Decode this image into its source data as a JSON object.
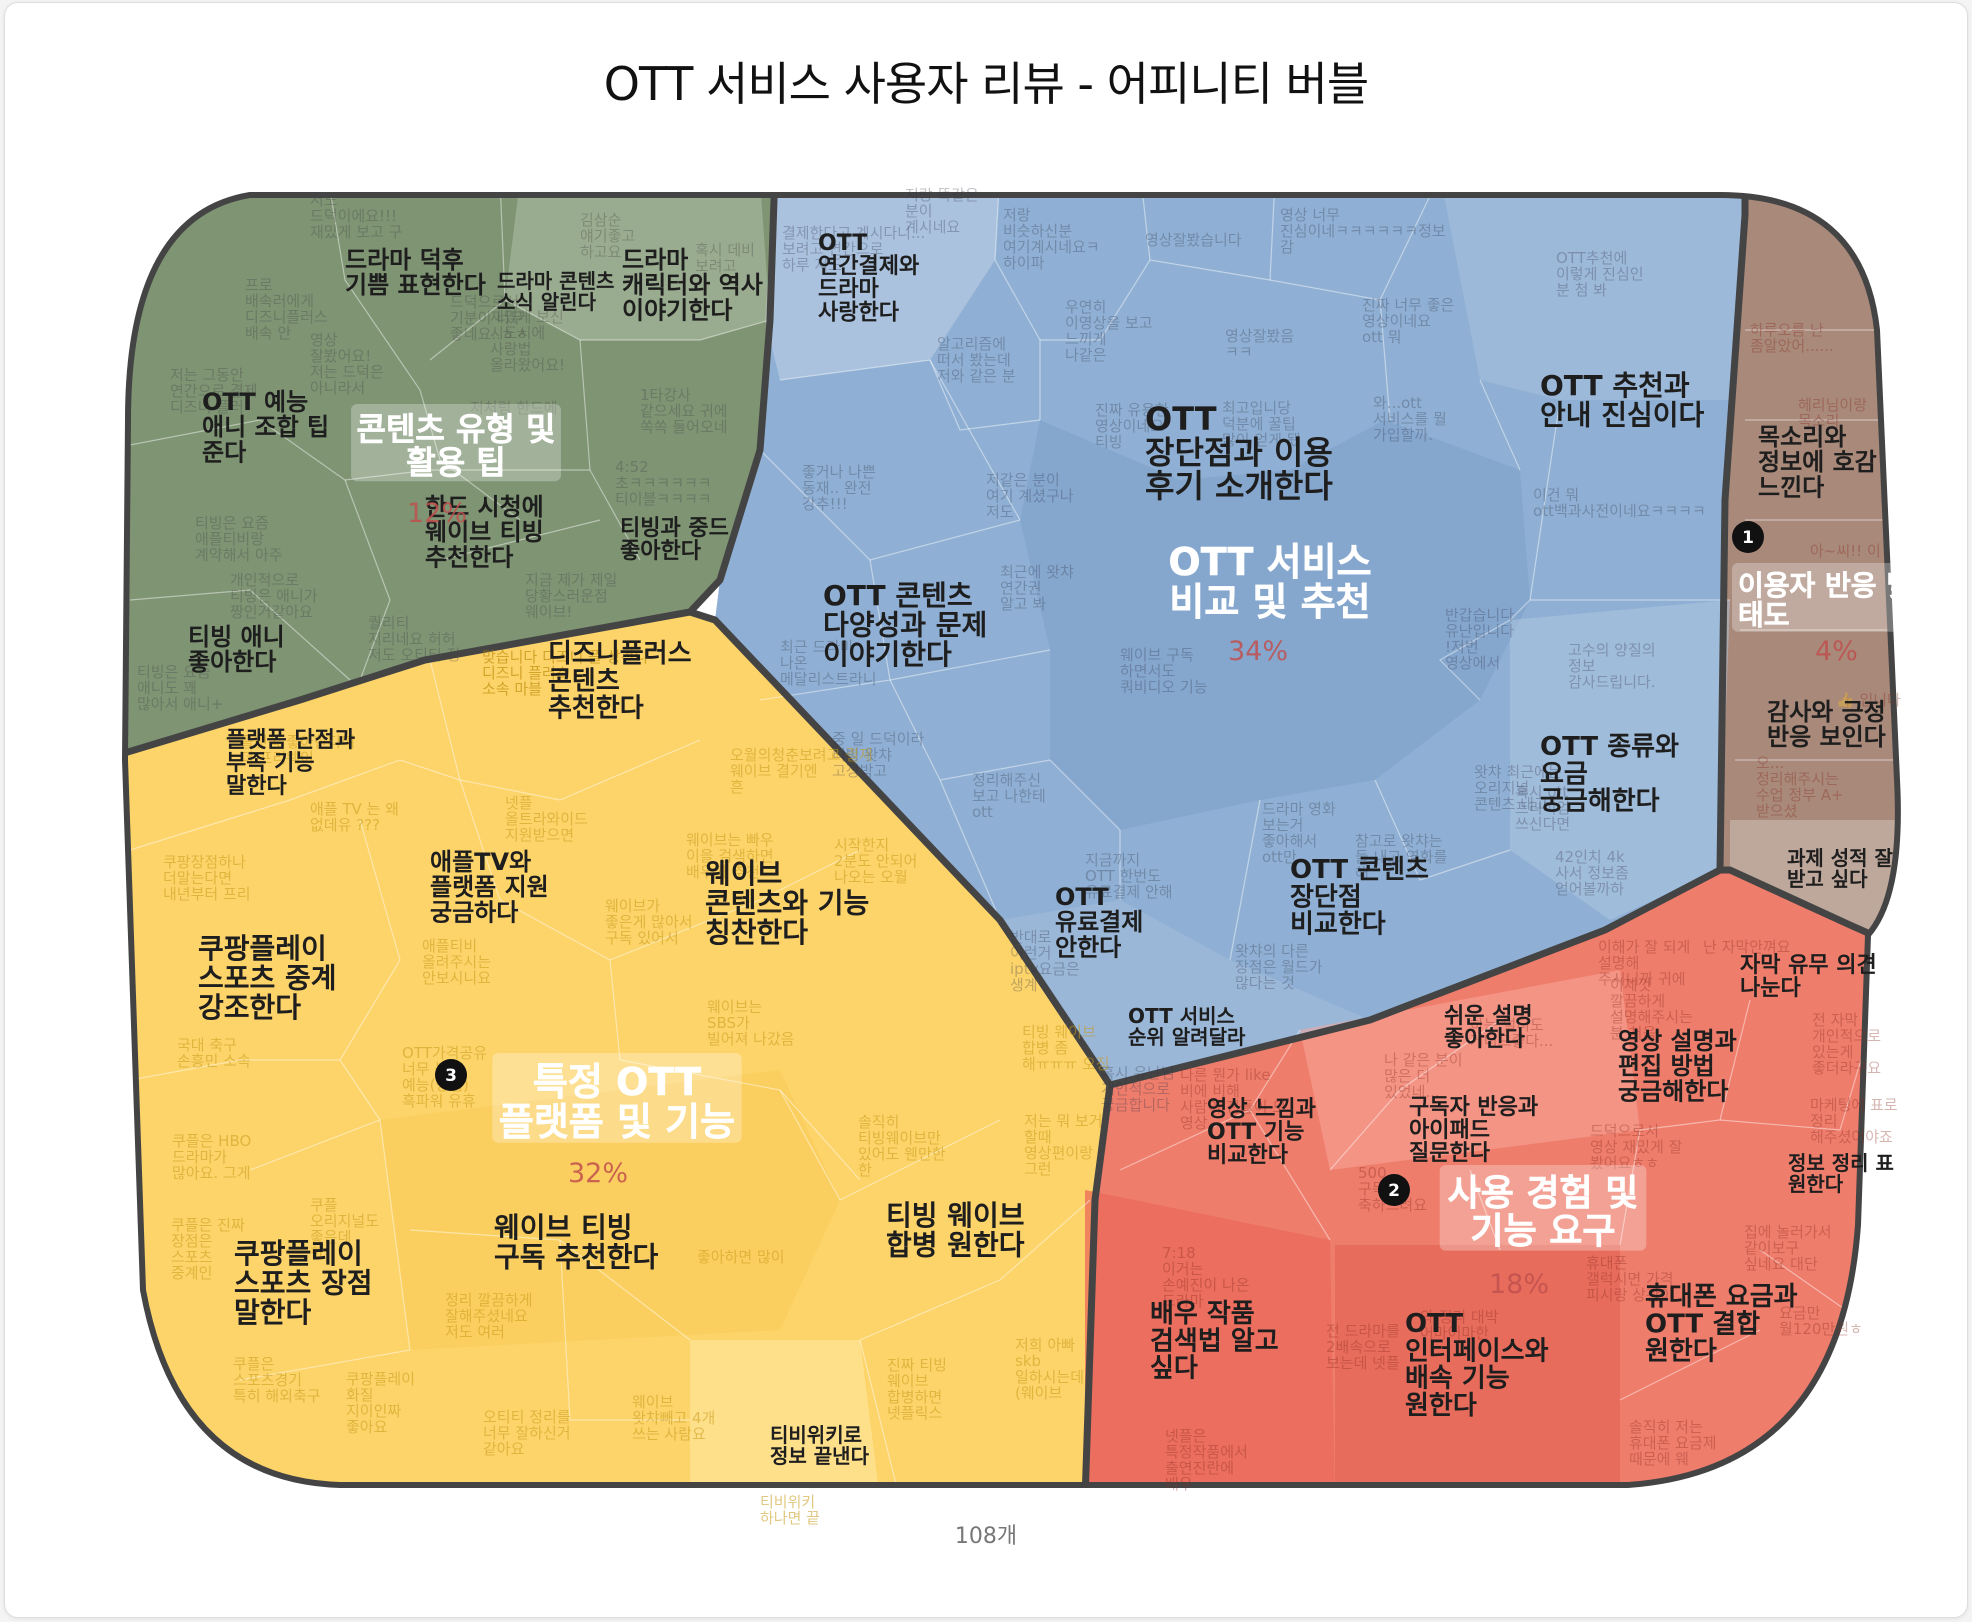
{
  "title": "OTT 서비스 사용자 리뷰 - 어피니티 버블",
  "total": "108개",
  "colors": {
    "green": "#7e9473",
    "blue": "#8fb0d4",
    "yellow": "#fdd46a",
    "red": "#ef7d6c",
    "brown": "#a8897a",
    "pct_text": "#c0504d"
  },
  "clusters": [
    {
      "label": "OTT 서비스\n비교 및 추천",
      "pct": "34%",
      "color": "blue"
    },
    {
      "label": "특정 OTT\n플랫폼 및 기능",
      "pct": "32%",
      "color": "yellow",
      "marker": "3"
    },
    {
      "label": "사용 경험 및\n기능 요구",
      "pct": "18%",
      "color": "red",
      "marker": "2"
    },
    {
      "label": "이용자 반응 및\n태도",
      "pct": "4%",
      "color": "brown",
      "marker": "1"
    },
    {
      "label": "콘텐츠 유형 및\n활용 팁",
      "pct": "12%",
      "color": "green"
    }
  ],
  "themes": [
    "드라마 덕후\n기쁨 표현한다",
    "드라마 콘텐츠\n소식 알린다",
    "드라마\n캐릭터와 역사\n이야기한다",
    "OTT 예능\n애니 조합 팁\n준다",
    "한드 시청에\n웨이브 티빙\n추천한다",
    "티빙과 중드\n좋아한다",
    "티빙 애니\n좋아한다",
    "OTT\n연간결제와\n드라마\n사랑한다",
    "OTT\n장단점과 이용\n후기 소개한다",
    "OTT 추천과\n안내 진심이다",
    "OTT 콘텐츠\n다양성과 문제\n이야기한다",
    "OTT 종류와\n요금\n궁금해한다",
    "OTT 콘텐츠\n장단점\n비교한다",
    "OTT\n유료결제\n안한다",
    "OTT 서비스\n순위 알려달라",
    "목소리와\n정보에 호감\n느낀다",
    "감사와 긍정\n반응 보인다",
    "과제 성적 잘\n받고 싶다",
    "플랫폼 단점과\n부족 기능\n말한다",
    "디즈니플러스\n콘텐츠\n추천한다",
    "애플TV와\n플랫폼 지원\n궁금하다",
    "웨이브\n콘텐츠와 기능\n칭찬한다",
    "쿠팡플레이\n스포츠 중계\n강조한다",
    "웨이브 티빙\n구독 추천한다",
    "티빙 웨이브\n합병 원한다",
    "쿠팡플레이\n스포츠 장점\n말한다",
    "티비위키로\n정보 끝낸다",
    "쉬운 설명\n좋아한다",
    "영상 느낌과\nOTT 기능\n비교한다",
    "구독자 반응과\n아이패드\n질문한다",
    "영상 설명과\n편집 방법\n궁금해한다",
    "자막 유무 의견\n나눈다",
    "정보 정리 표\n원한다",
    "배우 작품\n검색법 알고\n싶다",
    "OTT\n인터페이스와\n배속 기능\n원한다",
    "휴대폰 요금과\nOTT 결합\n원한다"
  ],
  "snippets": [
    "저도\n드덕이에요!!!\n재밌게 보고 구",
    "김삼순\n얘기좋고\n하고요",
    "혹시 데비\n보려고",
    "프로\n배속러에게\n디즈니플러스\n배속 안",
    "영상\n잘봤어요!\n저는 드덕은\n아니라서",
    "드덕으로서\n기분이 너무\n좋네요..ㅎㅎ",
    "재밌게 보신\n시도시에\n사랑법\n올라왔어요!",
    "저는 그동안\n연간으로 결제\n디즈니 플러",
    "저처럼 한드에",
    "1타강사\n같으세요 귀에\n쏙쏙 들어오네",
    "4:52\n초ㅋㅋㅋㅋㅋㅋ\n티이블ㅋㅋㅋㅋ",
    "티빙은 요즘\n애플티비랑\n계약해서 아주",
    "개인적으로\n티빙은 애니가\n짱인거같아요",
    "지금 제가 제일\n당황스러운점\n웨이브!",
    "퀄리티\n지리네요 허허\n저도 오티티 정",
    "티빙은 요즘\n애니도 꽤\n많아서 애니+",
    "저랑 똑같은\n분이\n계시네요",
    "결제한다고 계시다니...\n보려고 연간으로\n하루 저도",
    "저랑\n비슷하신분\n여기계시네요ㅋ\n하이파",
    "영상잘봤습니다",
    "영상 너무\n진심이네ㅋㅋㅋㅋㅋㅋ정보\n감",
    "OTT추천에\n이렇게 진심인\n분 첨 봐",
    "우연히\n이영상을 보고\n느끼게\n나같은",
    "영상잘봤음\nㅋㅋ",
    "진짜 너무 좋은\n영상이네요\nott 뭐",
    "알고리즘에\n떠서 봤는데\n저와 같은 분",
    "진짜 유용한\n영상이네요\n티빙",
    "최고입니당\n덕분에 꿀팁\n많이 얻게 됐",
    "와...ott\n서비스를 뭘\n가입할까.",
    "좋거나 나쁜\n동재.. 완전\n강추!!!",
    "저같은 분이\n여기 계셨구나\n저도",
    "이건 뭐\nott백과사전이네요ㅋㅋㅋㅋ",
    "최근에 왓챠\n연간권\n알고 봐",
    "최근 드라마\n나온\n메달리스트라니",
    "웨이브 구독\n하면서도\n쿼비디오 기능",
    "반갑습니다\n유난입니다\n!저번\n영상에서",
    "고수의 양질의\n정보\n감사드립니다.",
    "중 일 드덕이라\n티빙 왓챠\n고정박고",
    "정리해주신\n보고 나한테\nott",
    "왓챠 최근에는\n오리지널\n콘텐츠 내고",
    "혹시 ott\n프리미엄\n쓰신다면",
    "드라마 영화\n보는거\n좋아해서\nott만",
    "참고로 왓챠는\n둘 내고 영화를\n해",
    "지금까지\nOTT 한번도\n유료결제 안해",
    "42인치 4k\n사서 정보좀\n얻어볼까하",
    "반대로\n이런거\niptv요금은\n생계",
    "왓챠의 다른\n장점은 월드가\n많다는 것",
    "혹시 유난님\n개인적으로\n궁금합니다",
    "하루오름 난\n좀알았어......",
    "헤리님이랑\n목소리",
    "아~씨!! 이\n",
    "👍 입니다",
    "오...\n정리해주시는\n수업 정부 A+\n받으셨",
    "맞습니다 디즈니 플 상견니\n디즈니 플러스\n소속 마블",
    "플랫폼 좋아한다며\n더 프리웨이",
    "애플 TV 는 왜\n없데유 ???",
    "넷플\n올트라와이드\n지원받으면",
    "오월의청춘보려고 결제\n웨이브 결기엔\n흔",
    "쿠팡장점하나\n더말는다면\n내년부터 프리",
    "애플티비\n올려주시는\n안보시니요",
    "웨이브는 빠우\n이을 검색하면\n배우가 추천",
    "시작한지\n2분도 안되어\n나오는 오월",
    "웨이브가\n좋은게 많아서\n구독 있어서",
    "웨이브는\nSBS가\n빌어져 나갔음",
    "국대 축구\n손흥민 소속",
    "OTT가격공유\n너무 높이\n예능(방법)\n흑파워 유휴",
    "티빙 웨이브\n합병 좀\n해ㅠㅠㅠ 오징",
    "저는 뭐 보거\n할때\n영상편이랑\n그런",
    "쿠플은 HBO\n드라마가\n많아요. 그게",
    "쿠플은 진짜\n장점은\n스포츠\n중계인",
    "쿠플\n오리지널도\n좋은데\n한",
    "솔직히\n티빙웨이브만\n있어도 웬만한\n한",
    "정리 깔끔하게\n잘해주셨네요\n저도 여러",
    "좋아하면 많이",
    "쿠플은\n스포츠경기\n특히 해외축구",
    "쿠팡플레이\n화질\n지이인짜\n좋아요",
    "오티티 정리를\n너무 잘하신거\n같아요",
    "웨이브\n왓챠빼고 4개\n쓰는 사람요",
    "진짜 티빙\n웨이브\n합병하면\n넷플릭스",
    "저희 아빠\nskb\n일하시는데\n(웨이브",
    "티비위키\n하나면 끝",
    "하는 멀티도\n거너므좋다...",
    "나 같은 분이\n많은 더\n있었네...",
    "다른 뭔가 like\n비에 비해\n사람이 진들이 모\n영상",
    "이해가 잘 되게\n설명해\n주시니까 귀에",
    "난 자막안껴요",
    "이제껏\n깔끔하게\n설명해주시는\n분 처음",
    "전 자막\n개인적으로\n있는게\n좋더라구요",
    "마케팅에 표로\n정리\n해주셨어야죠",
    "드덕으로서\n영상 재밌게 잘\n봤어요ㅎㅎ",
    "500\n구독자\n축하드려요",
    "7:18\n이거는\n손예진이 나온\n드라마",
    "와 정리 대박\n어마어마한",
    "전 드라마를\n2배속으로\n보는데 넷플",
    "집에 놀러가서\n같이보구\n싶네요 대단",
    "휴대폰\n갤럭시면 가격\n피시랑 상관이",
    "요금만\n월120만원ㅎ",
    "솔직히 저는\n휴대폰 요금제\n때문에 웨",
    "넷플은\n특정작품에서\n출연진란에\n배우"
  ]
}
